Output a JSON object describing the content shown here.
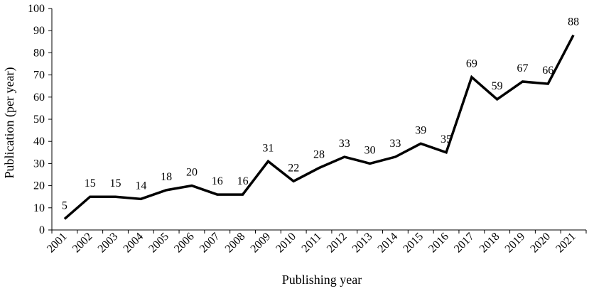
{
  "chart_data": {
    "type": "line",
    "title": "",
    "xlabel": "Publishing year",
    "ylabel": "Publication (per year)",
    "ylim": [
      0,
      100
    ],
    "y_ticks": [
      0,
      10,
      20,
      30,
      40,
      50,
      60,
      70,
      80,
      90,
      100
    ],
    "grid": false,
    "legend": "none",
    "line_color": "#000000",
    "categories": [
      "2001",
      "2002",
      "2003",
      "2004",
      "2005",
      "2006",
      "2007",
      "2008",
      "2009",
      "2010",
      "2011",
      "2012",
      "2013",
      "2014",
      "2015",
      "2016",
      "2017",
      "2018",
      "2019",
      "2020",
      "2021"
    ],
    "series": [
      {
        "values": [
          5,
          15,
          15,
          14,
          18,
          20,
          16,
          16,
          31,
          22,
          28,
          33,
          30,
          33,
          39,
          35,
          69,
          59,
          67,
          66,
          88
        ],
        "data_labels": [
          "5",
          "15",
          "15",
          "14",
          "18",
          "20",
          "16",
          "16",
          "31",
          "22",
          "28",
          "33",
          "30",
          "33",
          "39",
          "35",
          "69",
          "59",
          "67",
          "66",
          "88"
        ]
      }
    ]
  }
}
